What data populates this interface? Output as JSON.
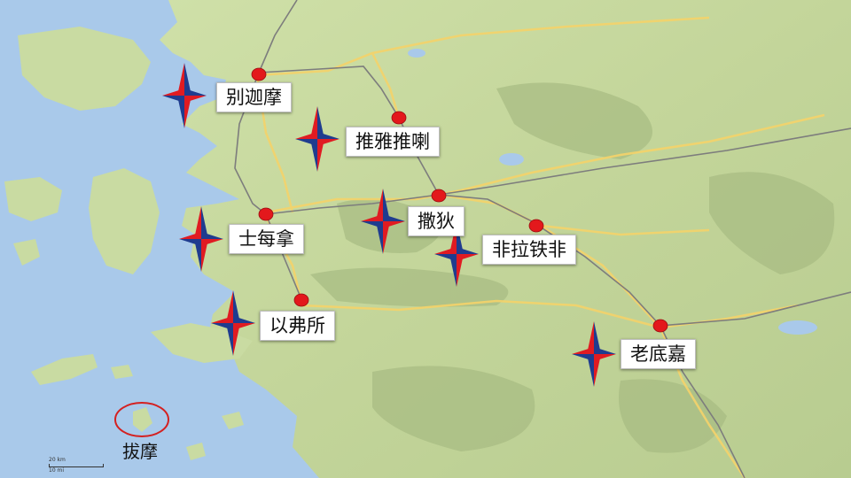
{
  "map": {
    "colors": {
      "sea": "#a9c9ea",
      "land": "#c9d9a0",
      "highland": "#aabd84",
      "road_main": "#888888",
      "road_minor": "#f5d36a",
      "city_dot": "#e3181c",
      "star_red": "#e01b22",
      "star_blue": "#1f3c8f",
      "circle": "#d42020"
    },
    "marker_icon": "four-point-star-icon",
    "city_icon": "red-dot-icon",
    "cities": [
      {
        "id": "pergamum",
        "label": "别迦摩"
      },
      {
        "id": "thyatira",
        "label": "推雅推喇"
      },
      {
        "id": "smyrna",
        "label": "士每拿"
      },
      {
        "id": "sardis",
        "label": "撒狄"
      },
      {
        "id": "philadelphia",
        "label": "非拉铁非"
      },
      {
        "id": "ephesus",
        "label": "以弗所"
      },
      {
        "id": "laodicea",
        "label": "老底嘉"
      }
    ],
    "island_label": "拔摩",
    "scale": {
      "km": "20 km",
      "mi": "10 mi"
    }
  }
}
